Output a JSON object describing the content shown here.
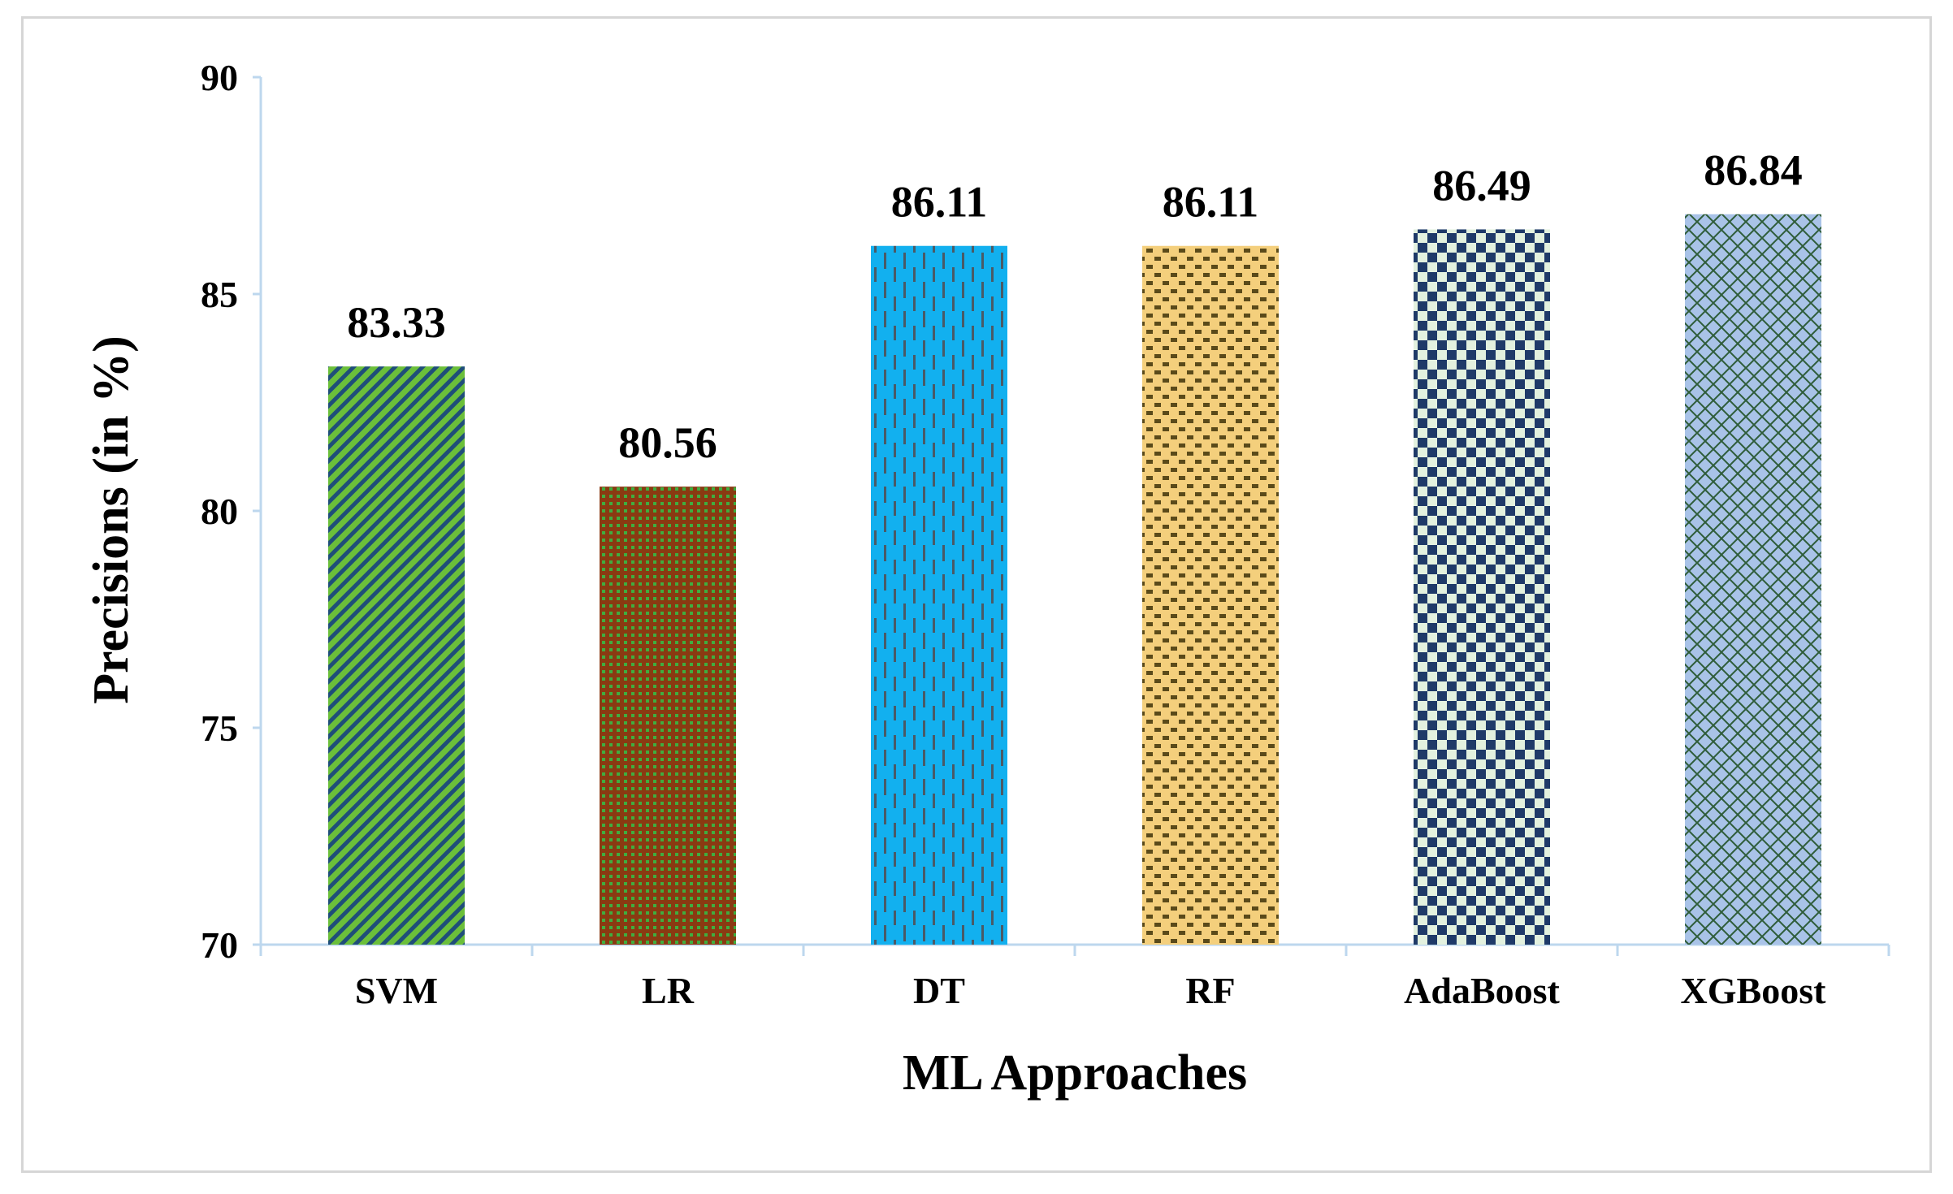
{
  "chart_data": {
    "type": "bar",
    "title": "",
    "xlabel": "ML Approaches",
    "ylabel": "Precisions (in %)",
    "categories": [
      "SVM",
      "LR",
      "DT",
      "RF",
      "AdaBoost",
      "XGBoost"
    ],
    "values": [
      83.33,
      80.56,
      86.11,
      86.11,
      86.49,
      86.84
    ],
    "data_labels": [
      "83.33",
      "80.56",
      "86.11",
      "86.11",
      "86.49",
      "86.84"
    ],
    "ylim": [
      70,
      90
    ],
    "yticks": [
      70,
      75,
      80,
      85,
      90
    ],
    "ytick_labels": [
      "70",
      "75",
      "80",
      "85",
      "90"
    ],
    "grid": false,
    "legend": "none",
    "bar_patterns": [
      "diagonal-green-stripes",
      "green-on-brown-dots",
      "blue-dashed-vertical",
      "brown-on-yellow-dashes",
      "navy-checkerboard",
      "blue-lattice"
    ],
    "colors": {
      "axis_line": "#bdd7ee",
      "svm_bg": "#6bbf3a",
      "svm_fg": "#1f4e79",
      "lr_bg": "#8a3a12",
      "lr_fg": "#3fae3f",
      "dt_bg": "#12b0ef",
      "dt_fg": "#4a5a66",
      "rf_bg": "#f4cf7c",
      "rf_fg": "#5a4a1a",
      "ada_bg": "#e3f1df",
      "ada_fg": "#1f3a68",
      "xgb_bg": "#a9c3e8",
      "xgb_fg": "#2f5d3a"
    }
  }
}
